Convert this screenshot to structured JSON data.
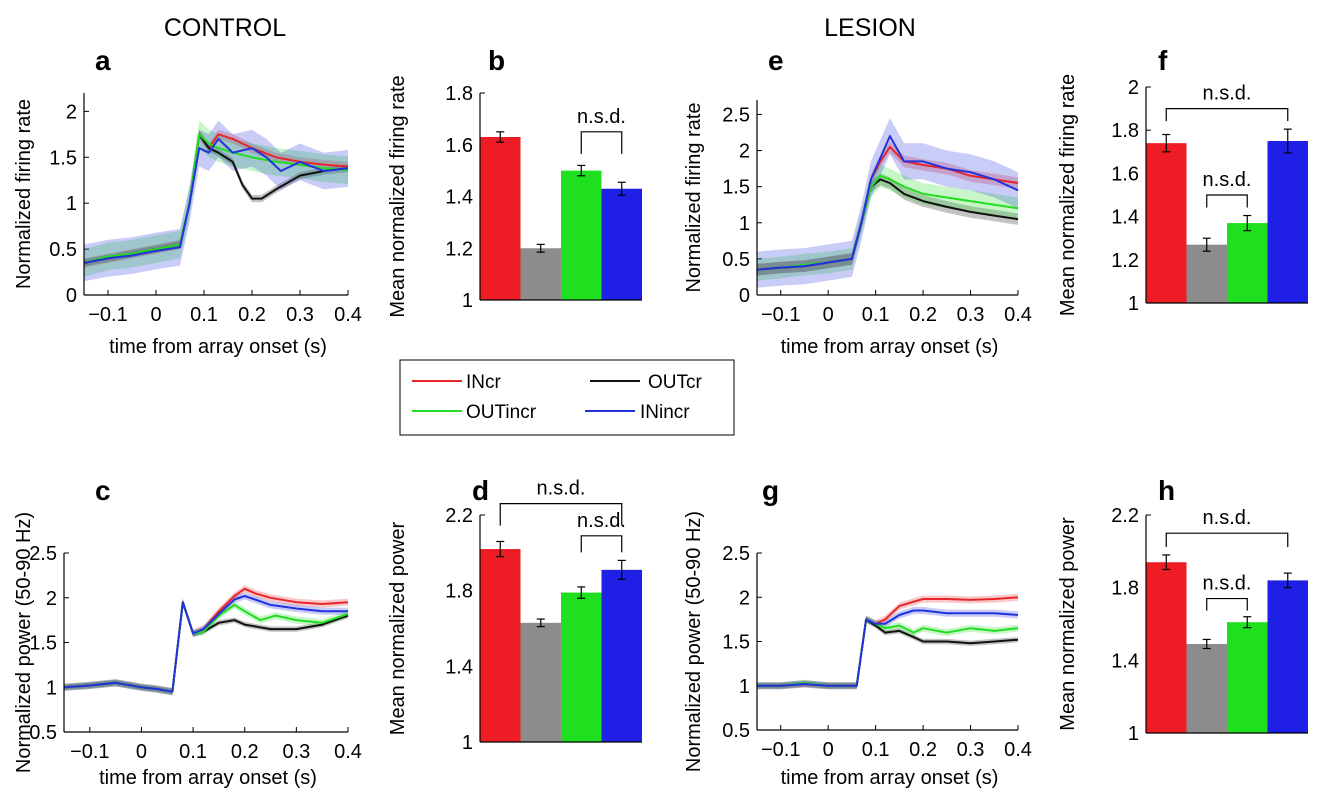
{
  "headers": {
    "control": "CONTROL",
    "lesion": "LESION"
  },
  "legend": [
    {
      "label": "INcr",
      "color": "#e8262a"
    },
    {
      "label": "OUTcr",
      "color": "#111111"
    },
    {
      "label": "OUTincr",
      "color": "#22dd22"
    },
    {
      "label": "INincr",
      "color": "#2233dd"
    }
  ],
  "colors": {
    "INcr": "#ee1c25",
    "OUTcr": "#8c8c8c",
    "OUTincr": "#1fe01f",
    "INincr": "#1f1fe6"
  },
  "chart_data": [
    {
      "panel": "a",
      "type": "line",
      "xlabel": "time from array onset (s)",
      "ylabel": "Normalized firing rate",
      "xlim": [
        -0.15,
        0.4
      ],
      "ylim": [
        0,
        2.2
      ],
      "xticks": [
        -0.1,
        0,
        0.1,
        0.2,
        0.3,
        0.4
      ],
      "yticks": [
        0,
        0.5,
        1,
        1.5,
        2
      ],
      "xtick_labels": [
        "−0.1",
        "0",
        "0.1",
        "0.2",
        "0.3",
        "0.4"
      ],
      "ytick_labels": [
        "0",
        "0.5",
        "1",
        "1.5",
        "2"
      ],
      "series": [
        {
          "name": "INcr",
          "color": "#e8262a",
          "band": 0.05,
          "x": [
            -0.15,
            -0.1,
            -0.05,
            0,
            0.05,
            0.07,
            0.09,
            0.11,
            0.13,
            0.16,
            0.2,
            0.25,
            0.3,
            0.35,
            0.4
          ],
          "y": [
            0.35,
            0.4,
            0.45,
            0.5,
            0.55,
            1.0,
            1.75,
            1.6,
            1.75,
            1.7,
            1.6,
            1.5,
            1.45,
            1.42,
            1.4
          ]
        },
        {
          "name": "OUTcr",
          "color": "#111111",
          "band": 0.04,
          "x": [
            -0.15,
            -0.1,
            -0.05,
            0,
            0.05,
            0.07,
            0.09,
            0.11,
            0.13,
            0.16,
            0.18,
            0.2,
            0.22,
            0.25,
            0.3,
            0.35,
            0.4
          ],
          "y": [
            0.35,
            0.4,
            0.45,
            0.5,
            0.55,
            1.0,
            1.75,
            1.6,
            1.55,
            1.45,
            1.2,
            1.05,
            1.05,
            1.15,
            1.3,
            1.35,
            1.38
          ]
        },
        {
          "name": "OUTincr",
          "color": "#22dd22",
          "band": 0.15,
          "x": [
            -0.15,
            -0.1,
            -0.05,
            0,
            0.05,
            0.07,
            0.09,
            0.11,
            0.13,
            0.16,
            0.2,
            0.25,
            0.3,
            0.35,
            0.4
          ],
          "y": [
            0.35,
            0.42,
            0.45,
            0.5,
            0.55,
            1.0,
            1.75,
            1.65,
            1.6,
            1.55,
            1.5,
            1.45,
            1.42,
            1.38,
            1.36
          ]
        },
        {
          "name": "INincr",
          "color": "#2233dd",
          "band": 0.2,
          "x": [
            -0.15,
            -0.1,
            -0.05,
            0,
            0.05,
            0.07,
            0.09,
            0.11,
            0.13,
            0.16,
            0.2,
            0.23,
            0.26,
            0.3,
            0.35,
            0.4
          ],
          "y": [
            0.35,
            0.4,
            0.43,
            0.48,
            0.52,
            1.0,
            1.6,
            1.55,
            1.7,
            1.55,
            1.6,
            1.5,
            1.35,
            1.45,
            1.35,
            1.38
          ]
        }
      ]
    },
    {
      "panel": "b",
      "type": "bar",
      "ylabel": "Mean normalized firing rate",
      "ylim": [
        1,
        1.8
      ],
      "yticks": [
        1,
        1.2,
        1.4,
        1.6,
        1.8
      ],
      "ytick_labels": [
        "1",
        "1.2",
        "1.4",
        "1.6",
        "1.8"
      ],
      "categories": [
        "INcr",
        "OUTcr",
        "OUTincr",
        "INincr"
      ],
      "values": [
        1.63,
        1.2,
        1.5,
        1.43
      ],
      "errors": [
        0.02,
        0.015,
        0.02,
        0.025
      ],
      "brackets": [
        {
          "from": 2,
          "to": 3,
          "label": "n.s.d.",
          "level": 1.65
        }
      ]
    },
    {
      "panel": "c",
      "type": "line",
      "xlabel": "time from array onset (s)",
      "ylabel": "Normalized power (50-90 Hz)",
      "xlim": [
        -0.15,
        0.4
      ],
      "ylim": [
        0.5,
        2.5
      ],
      "xticks": [
        -0.1,
        0,
        0.1,
        0.2,
        0.3,
        0.4
      ],
      "yticks": [
        0.5,
        1,
        1.5,
        2,
        2.5
      ],
      "xtick_labels": [
        "−0.1",
        "0",
        "0.1",
        "0.2",
        "0.3",
        "0.4"
      ],
      "ytick_labels": [
        "0.5",
        "1",
        "1.5",
        "2",
        "2.5"
      ],
      "series": [
        {
          "name": "INcr",
          "color": "#e8262a",
          "band": 0.04,
          "x": [
            -0.15,
            -0.1,
            -0.05,
            0,
            0.03,
            0.06,
            0.08,
            0.1,
            0.12,
            0.15,
            0.18,
            0.2,
            0.22,
            0.25,
            0.3,
            0.35,
            0.4
          ],
          "y": [
            1.0,
            1.02,
            1.05,
            1.0,
            0.98,
            0.95,
            1.95,
            1.6,
            1.65,
            1.85,
            2.02,
            2.1,
            2.05,
            2.0,
            1.95,
            1.93,
            1.95
          ]
        },
        {
          "name": "OUTcr",
          "color": "#111111",
          "band": 0.03,
          "x": [
            -0.15,
            -0.1,
            -0.05,
            0,
            0.03,
            0.06,
            0.08,
            0.1,
            0.12,
            0.15,
            0.18,
            0.2,
            0.25,
            0.3,
            0.35,
            0.4
          ],
          "y": [
            1.0,
            1.02,
            1.05,
            1.0,
            0.98,
            0.95,
            1.95,
            1.6,
            1.62,
            1.72,
            1.75,
            1.7,
            1.65,
            1.65,
            1.7,
            1.8
          ]
        },
        {
          "name": "OUTincr",
          "color": "#22dd22",
          "band": 0.04,
          "x": [
            -0.15,
            -0.1,
            -0.05,
            0,
            0.03,
            0.06,
            0.08,
            0.1,
            0.12,
            0.15,
            0.18,
            0.2,
            0.23,
            0.26,
            0.3,
            0.35,
            0.4
          ],
          "y": [
            1.0,
            1.02,
            1.05,
            1.0,
            0.98,
            0.95,
            1.95,
            1.6,
            1.62,
            1.8,
            1.92,
            1.85,
            1.75,
            1.8,
            1.75,
            1.72,
            1.82
          ]
        },
        {
          "name": "INincr",
          "color": "#2233dd",
          "band": 0.04,
          "x": [
            -0.15,
            -0.1,
            -0.05,
            0,
            0.03,
            0.06,
            0.08,
            0.1,
            0.12,
            0.15,
            0.18,
            0.2,
            0.22,
            0.25,
            0.3,
            0.35,
            0.4
          ],
          "y": [
            1.0,
            1.02,
            1.05,
            1.0,
            0.98,
            0.95,
            1.95,
            1.6,
            1.65,
            1.82,
            1.98,
            2.02,
            1.98,
            1.92,
            1.88,
            1.85,
            1.85
          ]
        }
      ]
    },
    {
      "panel": "d",
      "type": "bar",
      "ylabel": "Mean normalized power",
      "ylim": [
        1,
        2.2
      ],
      "yticks": [
        1,
        1.4,
        1.8,
        2.2
      ],
      "ytick_labels": [
        "1",
        "1.4",
        "1.8",
        "2.2"
      ],
      "categories": [
        "INcr",
        "OUTcr",
        "OUTincr",
        "INincr"
      ],
      "values": [
        2.02,
        1.63,
        1.79,
        1.91
      ],
      "errors": [
        0.04,
        0.02,
        0.03,
        0.05
      ],
      "brackets": [
        {
          "from": 0,
          "to": 3,
          "label": "n.s.d.",
          "level": 2.26
        },
        {
          "from": 2,
          "to": 3,
          "label": "n.s.d.",
          "level": 2.09
        }
      ]
    },
    {
      "panel": "e",
      "type": "line",
      "xlabel": "time from array onset (s)",
      "ylabel": "Normalized firing rate",
      "xlim": [
        -0.15,
        0.4
      ],
      "ylim": [
        0,
        2.7
      ],
      "xticks": [
        -0.1,
        0,
        0.1,
        0.2,
        0.3,
        0.4
      ],
      "yticks": [
        0,
        0.5,
        1,
        1.5,
        2,
        2.5
      ],
      "xtick_labels": [
        "−0.1",
        "0",
        "0.1",
        "0.2",
        "0.3",
        "0.4"
      ],
      "ytick_labels": [
        "0",
        "0.5",
        "1",
        "1.5",
        "2",
        "2.5"
      ],
      "series": [
        {
          "name": "INcr",
          "color": "#e8262a",
          "band": 0.08,
          "x": [
            -0.15,
            -0.1,
            -0.05,
            0,
            0.05,
            0.07,
            0.09,
            0.11,
            0.13,
            0.16,
            0.2,
            0.25,
            0.3,
            0.35,
            0.4
          ],
          "y": [
            0.35,
            0.38,
            0.4,
            0.45,
            0.5,
            1.0,
            1.6,
            1.85,
            2.05,
            1.85,
            1.8,
            1.75,
            1.65,
            1.6,
            1.55
          ]
        },
        {
          "name": "OUTcr",
          "color": "#111111",
          "band": 0.08,
          "x": [
            -0.15,
            -0.1,
            -0.05,
            0,
            0.05,
            0.07,
            0.09,
            0.11,
            0.13,
            0.16,
            0.2,
            0.25,
            0.3,
            0.35,
            0.4
          ],
          "y": [
            0.35,
            0.38,
            0.4,
            0.45,
            0.5,
            1.0,
            1.5,
            1.6,
            1.55,
            1.4,
            1.3,
            1.22,
            1.15,
            1.1,
            1.05
          ]
        },
        {
          "name": "OUTincr",
          "color": "#22dd22",
          "band": 0.15,
          "x": [
            -0.15,
            -0.1,
            -0.05,
            0,
            0.05,
            0.07,
            0.09,
            0.11,
            0.13,
            0.16,
            0.2,
            0.25,
            0.3,
            0.35,
            0.4
          ],
          "y": [
            0.35,
            0.38,
            0.42,
            0.45,
            0.5,
            1.0,
            1.5,
            1.65,
            1.6,
            1.5,
            1.4,
            1.35,
            1.3,
            1.25,
            1.2
          ]
        },
        {
          "name": "INincr",
          "color": "#2233dd",
          "band": 0.25,
          "x": [
            -0.15,
            -0.1,
            -0.05,
            0,
            0.05,
            0.07,
            0.09,
            0.11,
            0.13,
            0.16,
            0.2,
            0.25,
            0.3,
            0.35,
            0.4
          ],
          "y": [
            0.35,
            0.38,
            0.4,
            0.45,
            0.5,
            1.0,
            1.6,
            1.9,
            2.2,
            1.85,
            1.85,
            1.75,
            1.7,
            1.6,
            1.45
          ]
        }
      ]
    },
    {
      "panel": "f",
      "type": "bar",
      "ylabel": "Mean normalized firing rate",
      "ylim": [
        1,
        2
      ],
      "yticks": [
        1,
        1.2,
        1.4,
        1.6,
        1.8,
        2
      ],
      "ytick_labels": [
        "1",
        "1.2",
        "1.4",
        "1.6",
        "1.8",
        "2"
      ],
      "categories": [
        "INcr",
        "OUTcr",
        "OUTincr",
        "INincr"
      ],
      "values": [
        1.74,
        1.27,
        1.37,
        1.75
      ],
      "errors": [
        0.04,
        0.03,
        0.035,
        0.055
      ],
      "brackets": [
        {
          "from": 0,
          "to": 3,
          "label": "n.s.d.",
          "level": 1.9
        },
        {
          "from": 1,
          "to": 2,
          "label": "n.s.d.",
          "level": 1.5
        }
      ]
    },
    {
      "panel": "g",
      "type": "line",
      "xlabel": "time from array onset (s)",
      "ylabel": "Normalized power (50-90 Hz)",
      "xlim": [
        -0.15,
        0.4
      ],
      "ylim": [
        0.5,
        2.5
      ],
      "xticks": [
        -0.1,
        0,
        0.1,
        0.2,
        0.3,
        0.4
      ],
      "yticks": [
        0.5,
        1,
        1.5,
        2,
        2.5
      ],
      "xtick_labels": [
        "−0.1",
        "0",
        "0.1",
        "0.2",
        "0.3",
        "0.4"
      ],
      "ytick_labels": [
        "0.5",
        "1",
        "1.5",
        "2",
        "2.5"
      ],
      "series": [
        {
          "name": "INcr",
          "color": "#e8262a",
          "band": 0.04,
          "x": [
            -0.15,
            -0.1,
            -0.05,
            0,
            0.03,
            0.06,
            0.08,
            0.1,
            0.12,
            0.15,
            0.18,
            0.2,
            0.25,
            0.3,
            0.35,
            0.4
          ],
          "y": [
            1.0,
            1.0,
            1.02,
            1.0,
            1.0,
            1.0,
            1.75,
            1.7,
            1.75,
            1.9,
            1.95,
            1.98,
            1.98,
            1.97,
            1.98,
            2.0
          ]
        },
        {
          "name": "OUTcr",
          "color": "#111111",
          "band": 0.03,
          "x": [
            -0.15,
            -0.1,
            -0.05,
            0,
            0.03,
            0.06,
            0.08,
            0.1,
            0.12,
            0.15,
            0.18,
            0.2,
            0.25,
            0.3,
            0.35,
            0.4
          ],
          "y": [
            1.0,
            1.0,
            1.02,
            1.0,
            1.0,
            1.0,
            1.75,
            1.68,
            1.6,
            1.62,
            1.55,
            1.5,
            1.5,
            1.48,
            1.5,
            1.52
          ]
        },
        {
          "name": "OUTincr",
          "color": "#22dd22",
          "band": 0.04,
          "x": [
            -0.15,
            -0.1,
            -0.05,
            0,
            0.03,
            0.06,
            0.08,
            0.1,
            0.12,
            0.15,
            0.18,
            0.2,
            0.25,
            0.3,
            0.35,
            0.4
          ],
          "y": [
            1.0,
            1.0,
            1.03,
            1.0,
            1.0,
            1.0,
            1.75,
            1.7,
            1.65,
            1.68,
            1.6,
            1.65,
            1.6,
            1.65,
            1.62,
            1.65
          ]
        },
        {
          "name": "INincr",
          "color": "#2233dd",
          "band": 0.04,
          "x": [
            -0.15,
            -0.1,
            -0.05,
            0,
            0.03,
            0.06,
            0.08,
            0.1,
            0.12,
            0.15,
            0.18,
            0.2,
            0.25,
            0.3,
            0.35,
            0.4
          ],
          "y": [
            1.0,
            1.0,
            1.02,
            1.0,
            1.0,
            1.0,
            1.75,
            1.7,
            1.7,
            1.8,
            1.85,
            1.85,
            1.82,
            1.82,
            1.82,
            1.8
          ]
        }
      ]
    },
    {
      "panel": "h",
      "type": "bar",
      "ylabel": "Mean normalized power",
      "ylim": [
        1,
        2.2
      ],
      "yticks": [
        1,
        1.4,
        1.8,
        2.2
      ],
      "ytick_labels": [
        "1",
        "1.4",
        "1.8",
        "2.2"
      ],
      "categories": [
        "INcr",
        "OUTcr",
        "OUTincr",
        "INincr"
      ],
      "values": [
        1.94,
        1.49,
        1.61,
        1.84
      ],
      "errors": [
        0.04,
        0.025,
        0.03,
        0.04
      ],
      "brackets": [
        {
          "from": 0,
          "to": 3,
          "label": "n.s.d.",
          "level": 2.1
        },
        {
          "from": 1,
          "to": 2,
          "label": "n.s.d.",
          "level": 1.74
        }
      ]
    }
  ]
}
